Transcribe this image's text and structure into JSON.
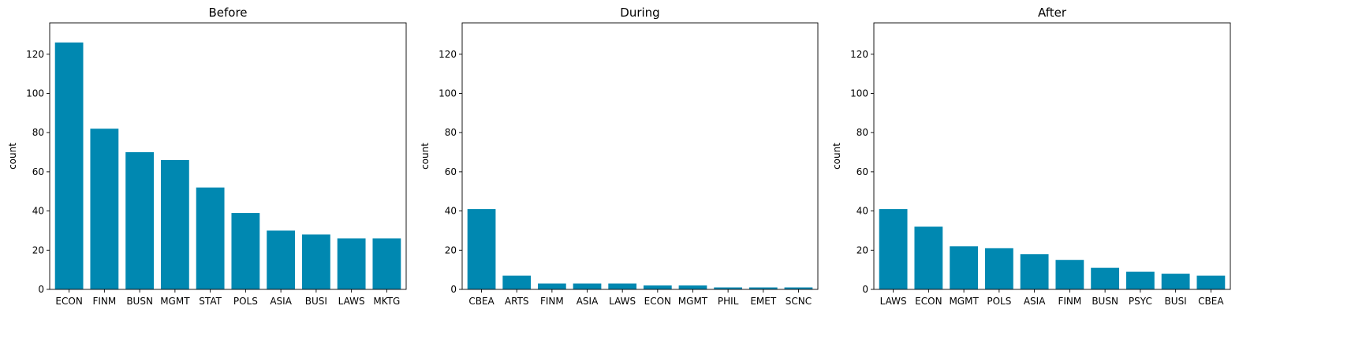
{
  "chart_data": [
    {
      "type": "bar",
      "title": "Before",
      "xlabel": "",
      "ylabel": "count",
      "ylim": [
        0,
        136
      ],
      "yticks": [
        0,
        20,
        40,
        60,
        80,
        100,
        120
      ],
      "categories": [
        "ECON",
        "FINM",
        "BUSN",
        "MGMT",
        "STAT",
        "POLS",
        "ASIA",
        "BUSI",
        "LAWS",
        "MKTG"
      ],
      "values": [
        126,
        82,
        70,
        66,
        52,
        39,
        30,
        28,
        26,
        26
      ],
      "color": "#0088b1",
      "grid": false
    },
    {
      "type": "bar",
      "title": "During",
      "xlabel": "",
      "ylabel": "count",
      "ylim": [
        0,
        136
      ],
      "yticks": [
        0,
        20,
        40,
        60,
        80,
        100,
        120
      ],
      "categories": [
        "CBEA",
        "ARTS",
        "FINM",
        "ASIA",
        "LAWS",
        "ECON",
        "MGMT",
        "PHIL",
        "EMET",
        "SCNC"
      ],
      "values": [
        41,
        7,
        3,
        3,
        3,
        2,
        2,
        1,
        1,
        1
      ],
      "color": "#0088b1",
      "grid": false
    },
    {
      "type": "bar",
      "title": "After",
      "xlabel": "",
      "ylabel": "count",
      "ylim": [
        0,
        136
      ],
      "yticks": [
        0,
        20,
        40,
        60,
        80,
        100,
        120
      ],
      "categories": [
        "LAWS",
        "ECON",
        "MGMT",
        "POLS",
        "ASIA",
        "FINM",
        "BUSN",
        "PSYC",
        "BUSI",
        "CBEA"
      ],
      "values": [
        41,
        32,
        22,
        21,
        18,
        15,
        11,
        9,
        8,
        7
      ],
      "color": "#0088b1",
      "grid": false
    }
  ]
}
